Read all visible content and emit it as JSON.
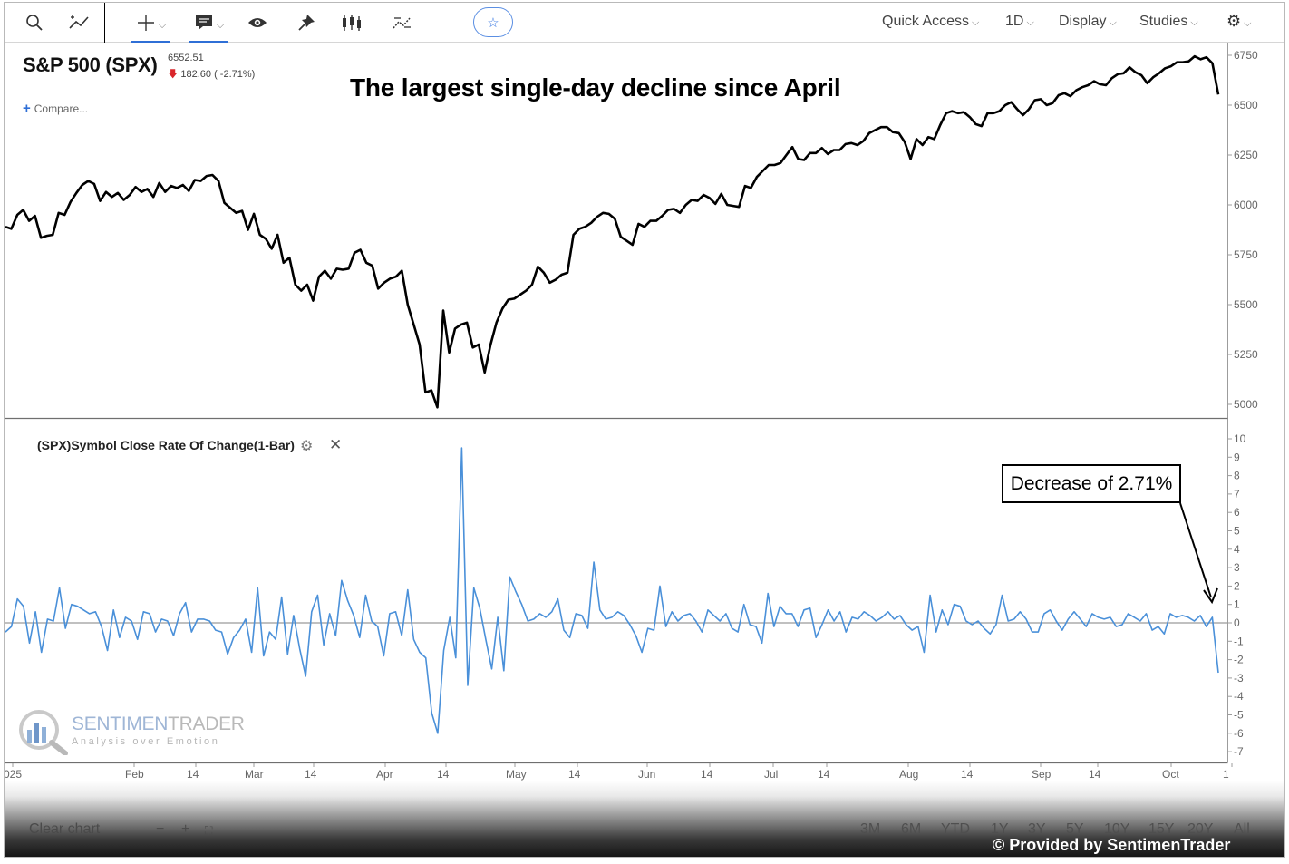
{
  "toolbar": {
    "quick_access": "Quick Access",
    "interval": "1D",
    "display": "Display",
    "studies": "Studies"
  },
  "symbol": {
    "title": "S&P 500 (SPX)",
    "last": "6552.51",
    "change": "182.60 ( -2.71%)",
    "compare": "Compare..."
  },
  "headline": "The largest single-day decline since April",
  "study": {
    "title": "(SPX)Symbol Close Rate Of Change(1-Bar)"
  },
  "callout": "Decrease of 2.71%",
  "logo": {
    "name_a": "SENTIMEN",
    "name_b": "TRADER",
    "tagline": "Analysis over Emotion"
  },
  "bottom": {
    "clear_chart": "Clear chart",
    "ranges": [
      "3M",
      "6M",
      "YTD",
      "1Y",
      "3Y",
      "5Y",
      "10Y",
      "15Y",
      "20Y",
      "All"
    ],
    "credit": "© Provided by SentimenTrader"
  },
  "colors": {
    "price_line": "#000000",
    "roc_line": "#4a90d9",
    "zero_line": "#9a9a9a",
    "callout_border": "#000000"
  },
  "chart_data": [
    {
      "type": "line",
      "title": "S&P 500 (SPX)",
      "xlabel": "",
      "ylabel": "",
      "ylim": [
        4950,
        6780
      ],
      "y_ticks": [
        5000,
        5250,
        5500,
        5750,
        6000,
        6250,
        6500,
        6750
      ],
      "x_tick_labels": [
        "025",
        "Feb",
        "14",
        "Mar",
        "14",
        "Apr",
        "14",
        "May",
        "14",
        "Jun",
        "14",
        "Jul",
        "14",
        "Aug",
        "14",
        "Sep",
        "14",
        "Oct",
        "1"
      ],
      "grid": false,
      "series": [
        {
          "values": [
            5890,
            5880,
            5950,
            5975,
            5920,
            5945,
            5835,
            5845,
            5850,
            5960,
            5950,
            6015,
            6060,
            6100,
            6120,
            6105,
            6020,
            6065,
            6040,
            6060,
            6025,
            6050,
            6090,
            6065,
            6080,
            6040,
            6110,
            6065,
            6095,
            6085,
            6100,
            6070,
            6125,
            6120,
            6145,
            6150,
            6120,
            6010,
            5985,
            5960,
            5970,
            5875,
            5955,
            5850,
            5830,
            5780,
            5850,
            5710,
            5735,
            5600,
            5570,
            5600,
            5520,
            5640,
            5670,
            5630,
            5680,
            5675,
            5680,
            5760,
            5775,
            5710,
            5695,
            5580,
            5610,
            5630,
            5640,
            5670,
            5500,
            5400,
            5300,
            5060,
            5070,
            4985,
            5470,
            5260,
            5380,
            5400,
            5410,
            5285,
            5300,
            5160,
            5300,
            5410,
            5480,
            5525,
            5530,
            5550,
            5570,
            5600,
            5690,
            5660,
            5610,
            5625,
            5650,
            5660,
            5850,
            5880,
            5890,
            5910,
            5940,
            5960,
            5955,
            5930,
            5840,
            5820,
            5800,
            5905,
            5890,
            5920,
            5920,
            5945,
            5975,
            5980,
            5960,
            6000,
            6025,
            6020,
            6050,
            6035,
            6005,
            6055,
            6000,
            5995,
            5990,
            6095,
            6085,
            6140,
            6170,
            6200,
            6200,
            6210,
            6250,
            6290,
            6230,
            6225,
            6260,
            6260,
            6285,
            6255,
            6275,
            6275,
            6305,
            6310,
            6300,
            6320,
            6360,
            6375,
            6390,
            6390,
            6365,
            6360,
            6315,
            6230,
            6330,
            6300,
            6340,
            6330,
            6400,
            6460,
            6470,
            6460,
            6465,
            6440,
            6405,
            6395,
            6460,
            6460,
            6470,
            6500,
            6515,
            6480,
            6450,
            6480,
            6525,
            6530,
            6500,
            6510,
            6550,
            6560,
            6545,
            6575,
            6590,
            6600,
            6620,
            6605,
            6600,
            6635,
            6655,
            6660,
            6690,
            6665,
            6650,
            6610,
            6640,
            6660,
            6685,
            6695,
            6715,
            6715,
            6720,
            6745,
            6730,
            6740,
            6710,
            6553
          ]
        }
      ]
    },
    {
      "type": "line",
      "title": "(SPX)Symbol Close Rate Of Change(1-Bar)",
      "xlabel": "",
      "ylabel": "",
      "ylim": [
        -7.5,
        10.5
      ],
      "y_ticks": [
        10,
        9,
        8,
        7,
        6,
        5,
        4,
        3,
        2,
        1,
        0,
        -1,
        -2,
        -3,
        -4,
        -5,
        -6,
        -7
      ],
      "x_tick_labels": [
        "025",
        "Feb",
        "14",
        "Mar",
        "14",
        "Apr",
        "14",
        "May",
        "14",
        "Jun",
        "14",
        "Jul",
        "14",
        "Aug",
        "14",
        "Sep",
        "14",
        "Oct",
        "1"
      ],
      "grid": false,
      "annotations": [
        "Decrease of 2.71%"
      ],
      "series": [
        {
          "values": [
            -0.5,
            -0.2,
            1.3,
            0.9,
            -1.1,
            0.6,
            -1.6,
            0.2,
            0.1,
            1.9,
            -0.3,
            1.0,
            0.9,
            0.7,
            0.5,
            0.6,
            -0.2,
            -1.5,
            0.7,
            -0.8,
            0.3,
            0.1,
            -0.9,
            0.6,
            0.5,
            -0.5,
            0.2,
            0.1,
            -0.7,
            0.5,
            1.1,
            -0.5,
            0.2,
            0.2,
            0.1,
            -0.4,
            -0.5,
            -1.7,
            -0.8,
            -0.4,
            0.2,
            -1.6,
            1.9,
            -1.8,
            -0.5,
            -0.9,
            1.4,
            -1.7,
            0.4,
            -1.4,
            -2.9,
            0.6,
            1.5,
            -1.2,
            0.5,
            -0.7,
            2.3,
            1.2,
            0.4,
            -0.8,
            1.5,
            0.1,
            -0.2,
            -1.8,
            0.5,
            0.6,
            -0.7,
            1.8,
            -0.9,
            -1.6,
            -1.9,
            -4.9,
            -6.0,
            -1.5,
            0.3,
            -1.9,
            9.5,
            -3.4,
            1.9,
            0.8,
            -0.9,
            -2.5,
            0.3,
            -2.6,
            2.5,
            1.7,
            1.0,
            0.1,
            0.2,
            0.5,
            0.3,
            0.6,
            1.3,
            -0.4,
            -0.8,
            0.5,
            0.4,
            -0.3,
            3.3,
            0.7,
            0.2,
            0.3,
            0.6,
            0.4,
            -0.1,
            -0.7,
            -1.6,
            -0.3,
            -0.4,
            2.0,
            -0.2,
            0.6,
            0.1,
            0.4,
            0.5,
            0.1,
            -0.5,
            0.7,
            0.4,
            0.1,
            0.5,
            -0.3,
            -0.5,
            1.0,
            -0.1,
            -0.2,
            -1.1,
            1.6,
            -0.2,
            0.9,
            0.5,
            0.5,
            -0.2,
            0.7,
            0.8,
            -0.8,
            -0.1,
            0.7,
            0.1,
            0.6,
            -0.5,
            0.3,
            0.2,
            0.6,
            0.4,
            0.1,
            0.3,
            0.6,
            0.2,
            0.4,
            -0.1,
            -0.4,
            -0.2,
            -1.6,
            1.5,
            -0.5,
            0.7,
            -0.1,
            1.0,
            0.9,
            0.1,
            -0.1,
            0.1,
            -0.3,
            -0.6,
            -0.1,
            1.5,
            0.1,
            0.2,
            0.6,
            0.2,
            -0.5,
            -0.5,
            0.5,
            0.7,
            0.1,
            -0.4,
            0.2,
            0.6,
            0.2,
            -0.2,
            0.5,
            0.3,
            0.2,
            0.3,
            -0.2,
            -0.1,
            0.5,
            0.3,
            0.1,
            0.5,
            -0.4,
            -0.2,
            -0.6,
            0.5,
            0.3,
            0.4,
            0.3,
            0.1,
            0.4,
            -0.2,
            0.3,
            -2.71
          ]
        }
      ]
    }
  ]
}
